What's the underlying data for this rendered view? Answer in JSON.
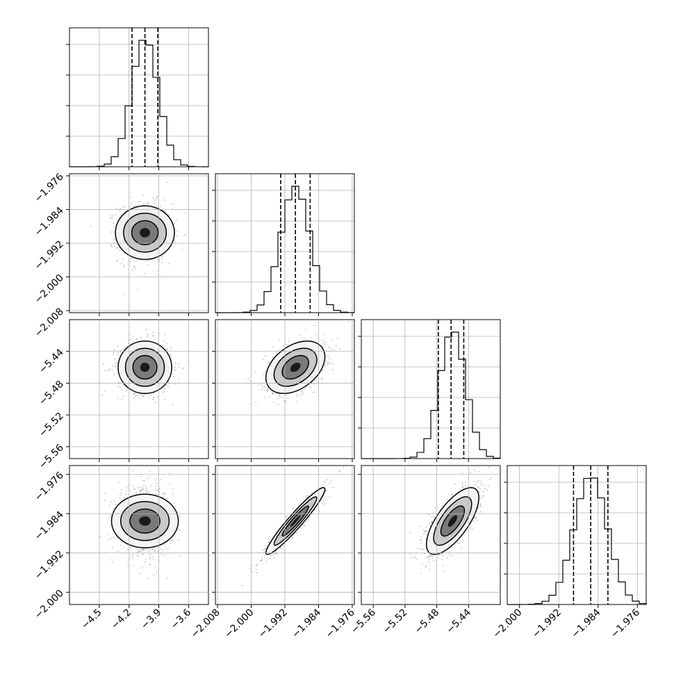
{
  "chart_data": {
    "type": "corner",
    "grid": true,
    "parameters": [
      {
        "range": [
          -4.8,
          -3.4
        ],
        "ticks": [
          -4.5,
          -4.2,
          -3.9,
          -3.6
        ],
        "tick_labels": [
          "−4.5",
          "−4.2",
          "−3.9",
          "−3.6"
        ]
      },
      {
        "range": [
          -2.0085,
          -1.9755
        ],
        "ticks": [
          -2.008,
          -2.0,
          -1.992,
          -1.984,
          -1.976
        ],
        "tick_labels": [
          "−2.008",
          "−2.000",
          "−1.992",
          "−1.984",
          "−1.976"
        ]
      },
      {
        "range": [
          -5.575,
          -5.4
        ],
        "ticks": [
          -5.56,
          -5.52,
          -5.48,
          -5.44
        ],
        "tick_labels": [
          "−5.56",
          "−5.52",
          "−5.48",
          "−5.44"
        ]
      },
      {
        "range": [
          -2.0025,
          -1.9742
        ],
        "ticks": [
          -2.0,
          -1.992,
          -1.984,
          -1.976
        ],
        "tick_labels": [
          "−2.000",
          "−1.992",
          "−1.984",
          "−1.976"
        ]
      }
    ],
    "marginals": [
      {
        "mean": -4.04,
        "sd": 0.135,
        "quantiles": [
          -4.17,
          -4.04,
          -3.91
        ]
      },
      {
        "mean": -1.9895,
        "sd": 0.0035,
        "quantiles": [
          -1.993,
          -1.9895,
          -1.986
        ]
      },
      {
        "mean": -5.46,
        "sd": 0.0165,
        "quantiles": [
          -5.478,
          -5.462,
          -5.446
        ]
      },
      {
        "mean": -1.9855,
        "sd": 0.0034,
        "quantiles": [
          -1.989,
          -1.9855,
          -1.982
        ]
      }
    ],
    "correlations": [
      [
        1,
        0,
        0,
        0
      ],
      [
        0,
        1,
        0.4,
        0.95
      ],
      [
        0,
        0.4,
        1,
        0.7
      ],
      [
        0,
        0.95,
        0.7,
        1
      ]
    ]
  }
}
